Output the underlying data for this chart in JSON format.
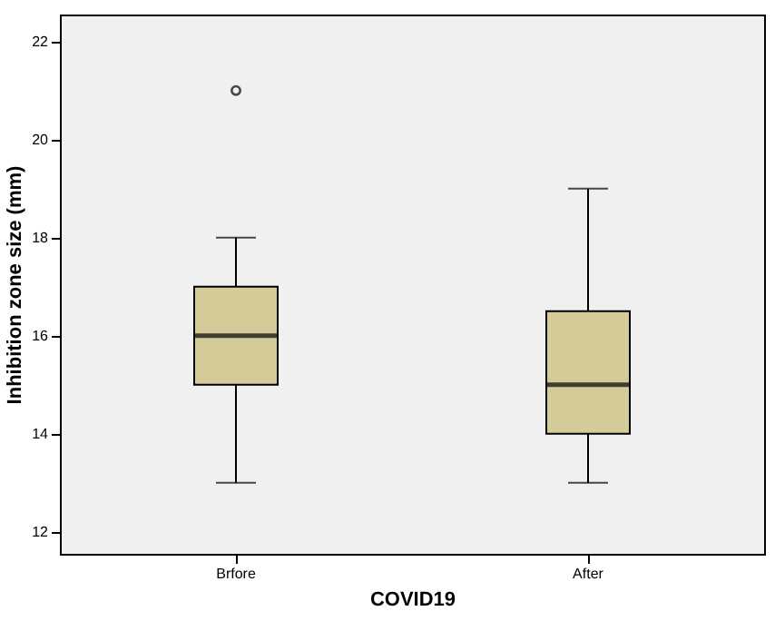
{
  "chart_data": {
    "type": "box",
    "xlabel": "COVID19",
    "ylabel": "Inhibition zone size (mm)",
    "categories": [
      "Brfore",
      "After"
    ],
    "color": "#d4cc98",
    "boxes": [
      {
        "low": 13,
        "q1": 15,
        "median": 16,
        "q3": 17,
        "high": 18,
        "outliers": [
          21
        ]
      },
      {
        "low": 13,
        "q1": 14,
        "median": 15,
        "q3": 16.5,
        "high": 19
      }
    ],
    "ylim": [
      11.55,
      22.55
    ],
    "yticks": [
      12,
      14,
      16,
      18,
      20,
      22
    ],
    "grid": false
  }
}
